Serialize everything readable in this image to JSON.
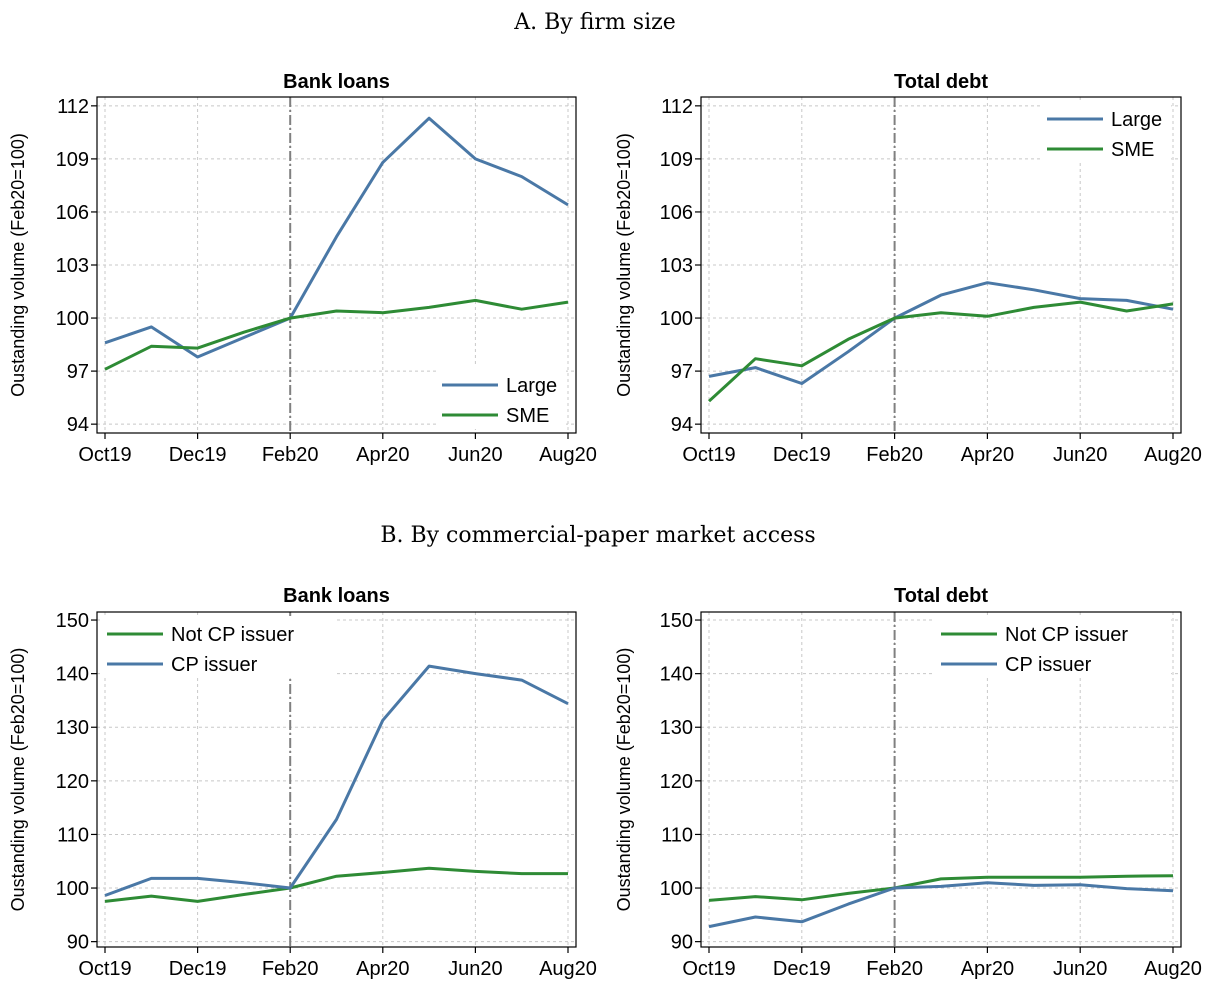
{
  "sections": [
    {
      "title": "A. By firm size"
    },
    {
      "title": "B. By commercial-paper market access"
    }
  ],
  "colors": {
    "blue": "#4a78a6",
    "green": "#2e8b35",
    "vline": "#808080"
  },
  "chart_data": [
    {
      "type": "line",
      "title": "Bank loans",
      "ylabel": "Oustanding volume (Feb20=100)",
      "x": [
        "Oct19",
        "Nov19",
        "Dec19",
        "Jan20",
        "Feb20",
        "Mar20",
        "Apr20",
        "May20",
        "Jun20",
        "Jul20",
        "Aug20"
      ],
      "xticks": [
        "Oct19",
        "Dec19",
        "Feb20",
        "Apr20",
        "Jun20",
        "Aug20"
      ],
      "yticks": [
        94,
        97,
        100,
        103,
        106,
        109,
        112
      ],
      "ylim": [
        93.5,
        112.5
      ],
      "vline_at": "Feb20",
      "grid": true,
      "legend_position": "bottom-right",
      "series": [
        {
          "name": "Large",
          "color": "#4a78a6",
          "values": [
            98.6,
            99.5,
            97.8,
            98.9,
            100.0,
            104.6,
            108.8,
            111.3,
            109.0,
            108.0,
            106.4
          ]
        },
        {
          "name": "SME",
          "color": "#2e8b35",
          "values": [
            97.1,
            98.4,
            98.3,
            99.2,
            100.0,
            100.4,
            100.3,
            100.6,
            101.0,
            100.5,
            100.9
          ]
        }
      ]
    },
    {
      "type": "line",
      "title": "Total debt",
      "ylabel": "Oustanding volume (Feb20=100)",
      "x": [
        "Oct19",
        "Nov19",
        "Dec19",
        "Jan20",
        "Feb20",
        "Mar20",
        "Apr20",
        "May20",
        "Jun20",
        "Jul20",
        "Aug20"
      ],
      "xticks": [
        "Oct19",
        "Dec19",
        "Feb20",
        "Apr20",
        "Jun20",
        "Aug20"
      ],
      "yticks": [
        94,
        97,
        100,
        103,
        106,
        109,
        112
      ],
      "ylim": [
        93.5,
        112.5
      ],
      "vline_at": "Feb20",
      "grid": true,
      "legend_position": "top-right",
      "series": [
        {
          "name": "Large",
          "color": "#4a78a6",
          "values": [
            96.7,
            97.2,
            96.3,
            98.1,
            100.0,
            101.3,
            102.0,
            101.6,
            101.1,
            101.0,
            100.5
          ]
        },
        {
          "name": "SME",
          "color": "#2e8b35",
          "values": [
            95.3,
            97.7,
            97.3,
            98.8,
            100.0,
            100.3,
            100.1,
            100.6,
            100.9,
            100.4,
            100.8
          ]
        }
      ]
    },
    {
      "type": "line",
      "title": "Bank loans",
      "ylabel": "Oustanding volume (Feb20=100)",
      "x": [
        "Oct19",
        "Nov19",
        "Dec19",
        "Jan20",
        "Feb20",
        "Mar20",
        "Apr20",
        "May20",
        "Jun20",
        "Jul20",
        "Aug20"
      ],
      "xticks": [
        "Oct19",
        "Dec19",
        "Feb20",
        "Apr20",
        "Jun20",
        "Aug20"
      ],
      "yticks": [
        90,
        100,
        110,
        120,
        130,
        140,
        150
      ],
      "ylim": [
        89,
        151.5
      ],
      "vline_at": "Feb20",
      "grid": true,
      "legend_position": "top-left",
      "series": [
        {
          "name": "Not CP issuer",
          "color": "#2e8b35",
          "values": [
            97.5,
            98.5,
            97.5,
            98.8,
            100.0,
            102.2,
            102.9,
            103.7,
            103.1,
            102.7,
            102.7
          ]
        },
        {
          "name": "CP issuer",
          "color": "#4a78a6",
          "values": [
            98.6,
            101.8,
            101.8,
            101.0,
            100.0,
            112.8,
            131.3,
            141.4,
            140.0,
            138.8,
            134.4
          ]
        }
      ]
    },
    {
      "type": "line",
      "title": "Total debt",
      "ylabel": "Oustanding volume (Feb20=100)",
      "x": [
        "Oct19",
        "Nov19",
        "Dec19",
        "Jan20",
        "Feb20",
        "Mar20",
        "Apr20",
        "May20",
        "Jun20",
        "Jul20",
        "Aug20"
      ],
      "xticks": [
        "Oct19",
        "Dec19",
        "Feb20",
        "Apr20",
        "Jun20",
        "Aug20"
      ],
      "yticks": [
        90,
        100,
        110,
        120,
        130,
        140,
        150
      ],
      "ylim": [
        89,
        151.5
      ],
      "vline_at": "Feb20",
      "grid": true,
      "legend_position": "top-right",
      "series": [
        {
          "name": "Not CP issuer",
          "color": "#2e8b35",
          "values": [
            97.7,
            98.4,
            97.8,
            99.0,
            100.0,
            101.7,
            102.0,
            102.0,
            102.0,
            102.2,
            102.3
          ]
        },
        {
          "name": "CP issuer",
          "color": "#4a78a6",
          "values": [
            92.8,
            94.6,
            93.7,
            97.0,
            100.0,
            100.3,
            101.0,
            100.5,
            100.6,
            99.9,
            99.5
          ]
        }
      ]
    }
  ]
}
